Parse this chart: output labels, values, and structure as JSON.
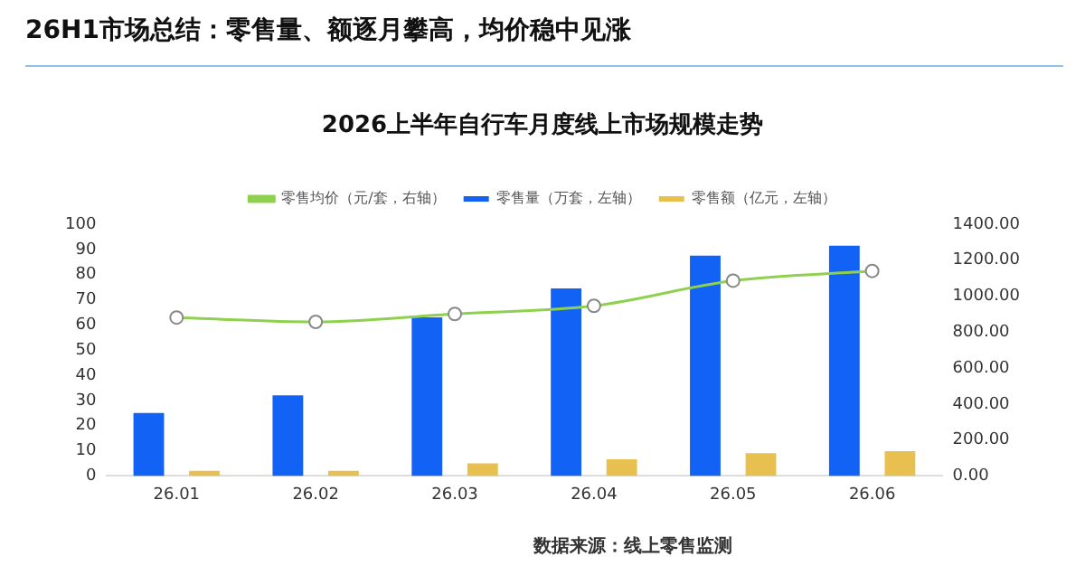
{
  "chart_data": {
    "type": "bar",
    "title": "26H1市场总结：零售量、额逐月攀高，均价稳中见涨",
    "subtitle": "2026上半年自行车月度线上市场规模走势",
    "categories": [
      "26.01",
      "26.02",
      "26.03",
      "26.04",
      "26.05",
      "26.06"
    ],
    "series": [
      {
        "name": "零售量（万套，左轴）",
        "color": "#1262f5",
        "values": [
          25,
          32,
          63,
          74.5,
          87.5,
          91.5
        ]
      },
      {
        "name": "零售额（亿元，左轴）",
        "color": "#e8c04f",
        "values": [
          2,
          2,
          5,
          6.6,
          9,
          9.8
        ]
      },
      {
        "name": "零售均价（元/套，右轴）",
        "type": "line",
        "axis": "y2",
        "color": "#8fd14f",
        "values": [
          881,
          857,
          901,
          946,
          1086,
          1140
        ]
      }
    ],
    "ylim": [
      0,
      100
    ],
    "yticks": [
      0,
      10,
      20,
      30,
      40,
      50,
      60,
      70,
      80,
      90,
      100
    ],
    "y2lim": [
      0,
      1400
    ],
    "y2ticks": [
      {
        "value": 0,
        "label": "0.00"
      },
      {
        "value": 200,
        "label": "200.00"
      },
      {
        "value": 400,
        "label": "400.00"
      },
      {
        "value": 600,
        "label": "600.00"
      },
      {
        "value": 800,
        "label": "800.00"
      },
      {
        "value": 1000,
        "label": "1000.00"
      },
      {
        "value": 1200,
        "label": "1200.00"
      },
      {
        "value": 1400,
        "label": "1400.00"
      }
    ],
    "grid": false,
    "legend": "top",
    "marker": "circle",
    "line_style": "solid",
    "annotations": [
      "数据来源：线上零售监测"
    ]
  }
}
